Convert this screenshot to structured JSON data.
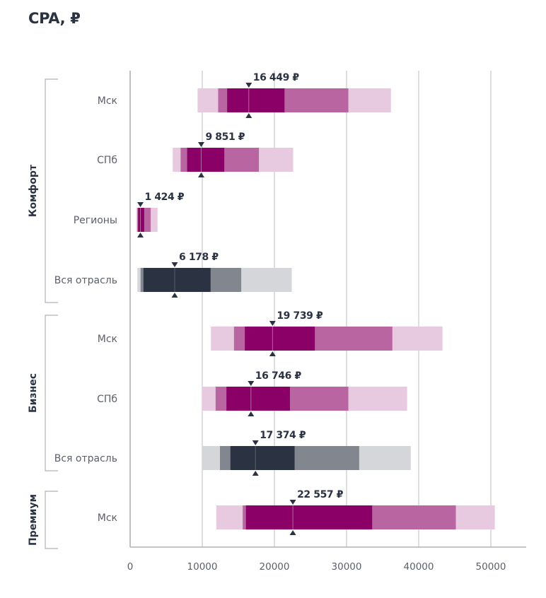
{
  "title": "CPA, ₽",
  "colors": {
    "accent": {
      "inner": "#8B0066",
      "mid": "#B865A2",
      "outer": "#E8CAE0"
    },
    "industry": {
      "inner": "#2B3342",
      "mid": "#82868F",
      "outer": "#D5D6DA"
    },
    "median_line_accent": "#B865A2",
    "median_line_industry": "#5A5F6B",
    "marker": "#2B3342",
    "grid": "#C9C9CC",
    "text": "#2B3342"
  },
  "chart_data": {
    "type": "bar",
    "subtype": "horizontal-range-band",
    "title": "CPA, ₽",
    "xlabel": "",
    "ylabel": "",
    "xlim": [
      0,
      55000
    ],
    "xticks": [
      0,
      10000,
      20000,
      30000,
      40000,
      50000
    ],
    "xtick_labels": [
      "0",
      "10000",
      "20000",
      "30000",
      "40000",
      "50000"
    ],
    "grid": true,
    "groups": [
      {
        "name": "Комфорт",
        "rows": [
          0,
          1,
          2,
          3
        ]
      },
      {
        "name": "Бизнес",
        "rows": [
          4,
          5,
          6
        ]
      },
      {
        "name": "Премиум",
        "rows": [
          7
        ]
      }
    ],
    "series_bands": [
      "outer",
      "mid",
      "inner"
    ],
    "rows": [
      {
        "label": "Мск",
        "group": "Комфорт",
        "palette": "accent",
        "outer": [
          9350,
          36150
        ],
        "mid": [
          12200,
          30250
        ],
        "inner": [
          13450,
          21400
        ],
        "median": 16449,
        "median_label": "16 449 ₽"
      },
      {
        "label": "СПб",
        "group": "Комфорт",
        "palette": "accent",
        "outer": [
          5900,
          22600
        ],
        "mid": [
          7000,
          17850
        ],
        "inner": [
          7900,
          13050
        ],
        "median": 9851,
        "median_label": "9 851 ₽"
      },
      {
        "label": "Регионы",
        "group": "Комфорт",
        "palette": "accent",
        "outer": [
          850,
          3800
        ],
        "mid": [
          1000,
          2850
        ],
        "inner": [
          1100,
          1950
        ],
        "median": 1424,
        "median_label": "1 424 ₽"
      },
      {
        "label": "Вся отрасль",
        "group": "Комфорт",
        "palette": "industry",
        "outer": [
          1000,
          22400
        ],
        "mid": [
          1450,
          15400
        ],
        "inner": [
          1850,
          11150
        ],
        "median": 6178,
        "median_label": "6 178 ₽"
      },
      {
        "label": "Мск",
        "group": "Бизнес",
        "palette": "accent",
        "outer": [
          11200,
          43300
        ],
        "mid": [
          14400,
          36350
        ],
        "inner": [
          15900,
          25600
        ],
        "median": 19739,
        "median_label": "19 739 ₽"
      },
      {
        "label": "СПб",
        "group": "Бизнес",
        "palette": "accent",
        "outer": [
          10000,
          38400
        ],
        "mid": [
          11850,
          30250
        ],
        "inner": [
          13350,
          22150
        ],
        "median": 16746,
        "median_label": "16 746 ₽"
      },
      {
        "label": "Вся отрасль",
        "group": "Бизнес",
        "palette": "industry",
        "outer": [
          10000,
          38900
        ],
        "mid": [
          12450,
          31750
        ],
        "inner": [
          13900,
          22800
        ],
        "median": 17374,
        "median_label": "17 374 ₽"
      },
      {
        "label": "Мск",
        "group": "Премиум",
        "palette": "accent",
        "outer": [
          11950,
          50550
        ],
        "mid": [
          15600,
          45150
        ],
        "inner": [
          16050,
          33550
        ],
        "median": 22557,
        "median_label": "22 557 ₽"
      }
    ]
  }
}
